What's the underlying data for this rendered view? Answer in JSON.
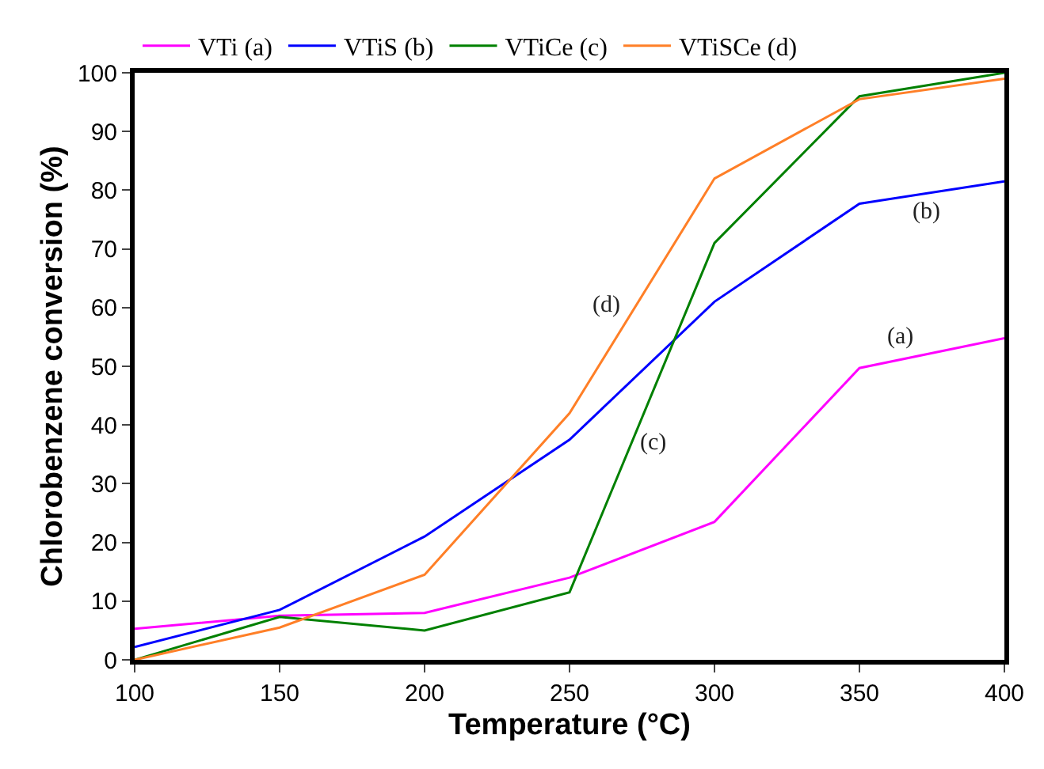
{
  "chart_data": {
    "type": "line",
    "xlabel": "Temperature (°C)",
    "ylabel": "Chlorobenzene conversion (%)",
    "x": [
      100,
      150,
      200,
      250,
      300,
      350,
      400
    ],
    "series": [
      {
        "name": "VTi (a)",
        "color": "#ff00ff",
        "values": [
          5.3,
          7.5,
          8,
          14,
          23.5,
          49.7,
          54.8
        ]
      },
      {
        "name": "VTiS (b)",
        "color": "#0000ff",
        "values": [
          2.2,
          8.5,
          21,
          37.5,
          61,
          77.7,
          81.5
        ]
      },
      {
        "name": "VTiCe (c)",
        "color": "#008000",
        "values": [
          0,
          7.3,
          5,
          11.5,
          71,
          96,
          100
        ]
      },
      {
        "name": "VTiSCe (d)",
        "color": "#ff7f27",
        "values": [
          0,
          5.5,
          14.5,
          42,
          82,
          95.5,
          99
        ]
      }
    ],
    "annotations": [
      "(a)",
      "(b)",
      "(c)",
      "(d)"
    ],
    "xlim": [
      100,
      400
    ],
    "xticks": [
      100,
      150,
      200,
      250,
      300,
      350,
      400
    ],
    "ylim": [
      0,
      100
    ],
    "yticks": [
      0,
      10,
      20,
      30,
      40,
      50,
      60,
      70,
      80,
      90,
      100
    ],
    "legend": "top",
    "marker": "none",
    "line_style": "solid"
  }
}
